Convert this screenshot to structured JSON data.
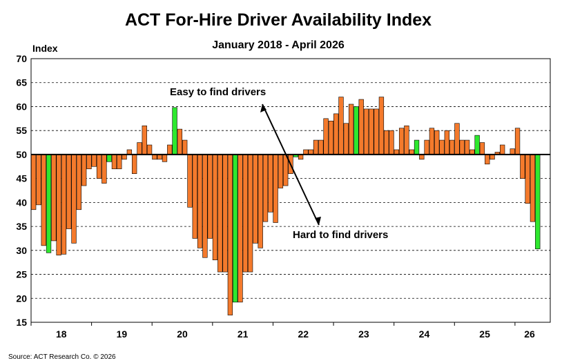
{
  "chart_data": {
    "type": "bar",
    "title": "ACT For-Hire Driver Availability Index",
    "subtitle": "January 2018 - April 2026",
    "ylabel": "Index",
    "xlabel": "",
    "ylim": [
      15,
      70
    ],
    "yticks": [
      15,
      20,
      25,
      30,
      35,
      40,
      45,
      50,
      55,
      60,
      65,
      70
    ],
    "baseline": 50,
    "grid": true,
    "x_tick_labels": [
      "18",
      "19",
      "20",
      "21",
      "22",
      "23",
      "24",
      "25",
      "26"
    ],
    "annotations": {
      "easy": "Easy to find drivers",
      "hard": "Hard to find drivers"
    },
    "source": "Source:  ACT Research Co. © 2026",
    "colors": {
      "regular": "#F47A2C",
      "highlight": "#2EE82E",
      "edge": "#000000"
    },
    "values": [
      38.5,
      39.5,
      31.0,
      29.5,
      32.0,
      29.0,
      29.2,
      34.5,
      31.5,
      38.5,
      43.5,
      47.0,
      47.5,
      45.0,
      44.0,
      48.5,
      47.0,
      47.0,
      49.0,
      51.0,
      46.0,
      52.5,
      56.0,
      52.0,
      49.0,
      49.0,
      48.5,
      52.0,
      59.8,
      55.3,
      53.0,
      39.0,
      32.5,
      30.5,
      28.5,
      32.5,
      28.0,
      25.5,
      25.5,
      16.5,
      19.2,
      19.2,
      25.5,
      25.5,
      31.5,
      30.5,
      36.0,
      38.0,
      35.8,
      43.0,
      43.5,
      46.0,
      49.5,
      49.0,
      51.0,
      51.0,
      53.0,
      53.0,
      57.5,
      57.0,
      58.5,
      62.0,
      56.5,
      60.5,
      60.0,
      61.5,
      59.5,
      59.5,
      59.5,
      62.0,
      55.0,
      55.0,
      51.0,
      55.5,
      56.0,
      51.0,
      53.0,
      49.0,
      53.0,
      55.5,
      55.0,
      53.0,
      55.0,
      53.0,
      56.5,
      53.0,
      53.0,
      51.0,
      54.0,
      52.5,
      48.0,
      49.0,
      50.5,
      52.0,
      50.0,
      51.2,
      55.5,
      45.0,
      39.8,
      36.0,
      30.3
    ],
    "highlight_indices": [
      3,
      15,
      28,
      40,
      52,
      64,
      76,
      88,
      100
    ]
  }
}
